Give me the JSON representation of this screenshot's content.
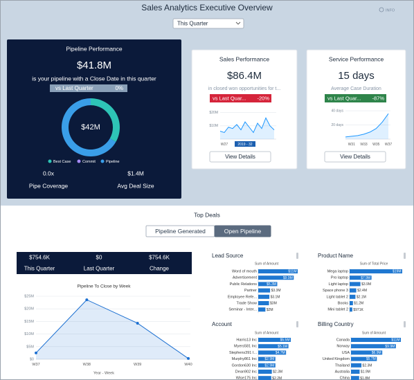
{
  "header": {
    "title": "Sales Analytics Executive Overview",
    "info": "INFO",
    "filter": "This Quarter"
  },
  "pipeline_performance": {
    "title": "Pipeline Performance",
    "amount": "$41.8M",
    "caption": "is your pipeline with a Close Date in this quarter",
    "comparison": {
      "label": "vs Last Quarter",
      "value": "0%"
    },
    "donut": {
      "type": "pie",
      "center_label": "$42M",
      "categories": [
        "Best Case",
        "Commit",
        "Pipeline"
      ],
      "values": [
        14,
        0,
        28
      ],
      "colors": [
        "#2ec4b6",
        "#a78bfa",
        "#3a9ee8"
      ]
    },
    "metrics": [
      {
        "value": "0.0x",
        "label": "Pipe Coverage"
      },
      {
        "value": "$1.4M",
        "label": "Avg Deal Size"
      }
    ]
  },
  "sales_performance": {
    "title": "Sales Performance",
    "amount": "$86.4M",
    "caption": "in closed won opportunities for t...",
    "comparison": {
      "label": "vs Last Quar...",
      "value": "-20%"
    },
    "button": "View Details",
    "chart": {
      "type": "line",
      "categories": [
        null,
        "W27",
        null,
        null,
        null,
        null,
        "2019 - 32",
        null,
        null,
        null,
        null,
        null,
        null,
        null
      ],
      "values": [
        6,
        5,
        9,
        8,
        11,
        7,
        13,
        9,
        5,
        12,
        8,
        16,
        10,
        7
      ],
      "highlight_index": 6,
      "ylim": [
        0,
        24
      ],
      "yticks": [
        {
          "value": 10,
          "label": "$10M"
        },
        {
          "value": 20,
          "label": "$20M"
        }
      ],
      "color": "#1b96ff"
    }
  },
  "service_performance": {
    "title": "Service Performance",
    "amount": "15 days",
    "caption": "Average Case Duration",
    "comparison": {
      "label": "vs Last Quar...",
      "value": "-87%"
    },
    "button": "View Details",
    "chart": {
      "type": "line",
      "categories": [
        null,
        "W31",
        null,
        "W33",
        null,
        "W35",
        null,
        "W37"
      ],
      "values": [
        3,
        4,
        5,
        7,
        10,
        15,
        24,
        36
      ],
      "ylim": [
        0,
        45
      ],
      "yticks": [
        {
          "value": 20,
          "label": "20 days"
        },
        {
          "value": 40,
          "label": "40 days"
        }
      ],
      "color": "#1b96ff"
    }
  },
  "top_deals": {
    "title": "Top Deals",
    "tabs": [
      "Pipeline Generated",
      "Open Pipeline"
    ],
    "active_tab": 1,
    "summary": [
      {
        "value": "$754.6K",
        "label": "This Quarter"
      },
      {
        "value": "$0",
        "label": "Last Quarter"
      },
      {
        "value": "$754.6K",
        "label": "Change"
      }
    ],
    "pipeline_by_week": {
      "type": "line",
      "title": "Pipeline To Close by Week",
      "x_label": "Year - Week",
      "categories": [
        "W37",
        "W38",
        "W39",
        "W40"
      ],
      "values": [
        2.5,
        23.6,
        14.3,
        0.3
      ],
      "ylim": [
        0,
        25
      ],
      "yticks": [
        {
          "value": 0,
          "label": "$0"
        },
        {
          "value": 5,
          "label": "$5M"
        },
        {
          "value": 10,
          "label": "$10M"
        },
        {
          "value": 15,
          "label": "$15M"
        },
        {
          "value": 20,
          "label": "$20M"
        },
        {
          "value": 25,
          "label": "$25M"
        }
      ],
      "color": "#1b6fd1"
    },
    "breakdowns": [
      {
        "type": "bar",
        "title": "Lead Source",
        "value_title": "Sum of Amount",
        "categories": [
          "Word of mouth",
          "Advertisement",
          "Public Relations",
          "Partner",
          "Employee Refe...",
          "Trade Show",
          "Seminar - Inter..."
        ],
        "values": [
          11,
          9.9,
          5.3,
          3.3,
          3.1,
          3,
          2
        ],
        "value_labels": [
          "$11M",
          "$9.9M",
          "$5.3M",
          "$3.3M",
          "$3.1M",
          "$3M",
          "$2M"
        ],
        "xlim": [
          0,
          11
        ],
        "color": "#1f78d1"
      },
      {
        "type": "bar",
        "title": "Product Name",
        "value_title": "Sum of Total Price",
        "categories": [
          "Mega laptop",
          "Pro laptop",
          "Light laptop",
          "Space phone 3",
          "Light tablet 2",
          "Books",
          "Mini tablet 2"
        ],
        "values": [
          19,
          7.9,
          3.9,
          2.4,
          2.1,
          1.2,
          0.971
        ],
        "value_labels": [
          "$19M",
          "$7.9M",
          "$3.9M",
          "$2.4M",
          "$2.1M",
          "$1.2M",
          "$971K"
        ],
        "xlim": [
          0,
          19
        ],
        "color": "#1f78d1"
      },
      {
        "type": "bar",
        "title": "Account",
        "value_title": "Sum of Amount",
        "categories": [
          "Harris13 Inc",
          "Myers581 Inc",
          "Stephens391 I...",
          "Murphy861 Inc",
          "Gordon630 Inc",
          "Dean902 Inc",
          "Wise175 Inc"
        ],
        "values": [
          5.5,
          5.1,
          4.7,
          2.9,
          2.9,
          2.3,
          2.2
        ],
        "value_labels": [
          "$5.5M",
          "$5.1M",
          "$4.7M",
          "$2.9M",
          "$2.9M",
          "$2.3M",
          "$2.2M"
        ],
        "xlim": [
          0,
          5.5
        ],
        "color": "#1f78d1"
      },
      {
        "type": "bar",
        "title": "Billing Country",
        "value_title": "Sum of Amount",
        "categories": [
          "Canada",
          "Norway",
          "USA",
          "United Kingdom",
          "Thailand",
          "Australia",
          "China"
        ],
        "values": [
          11,
          9.9,
          6.9,
          5.7,
          2.3,
          1.9,
          1.8
        ],
        "value_labels": [
          "$11M",
          "$9.9M",
          "$6.9M",
          "$5.7M",
          "$2.3M",
          "$1.9M",
          "$1.8M"
        ],
        "xlim": [
          0,
          11
        ],
        "color": "#1f78d1"
      }
    ]
  }
}
